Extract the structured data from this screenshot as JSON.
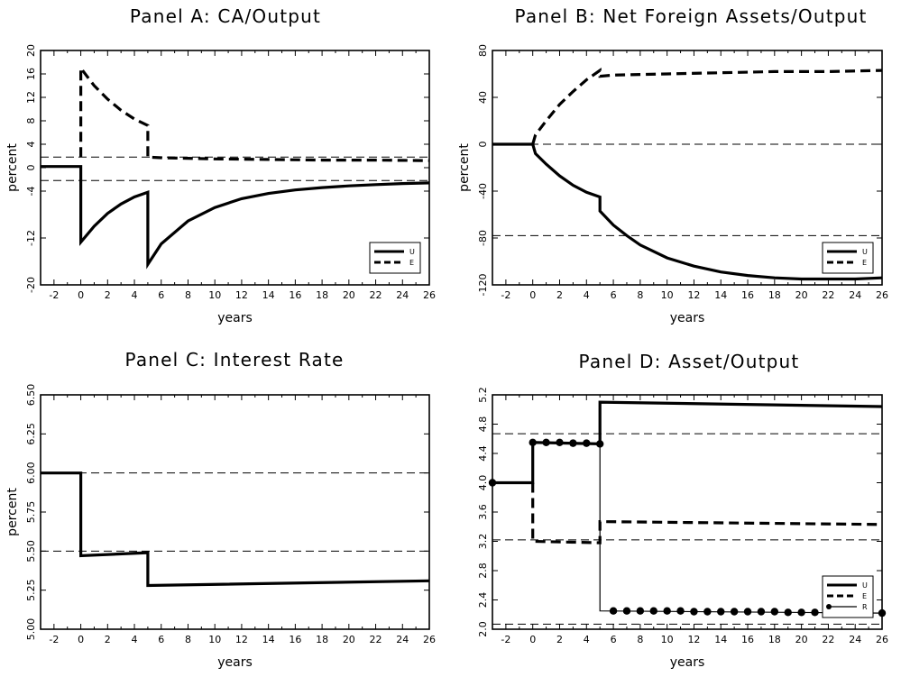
{
  "chart_data": [
    {
      "type": "line",
      "title": "Panel A: CA/Output",
      "xlabel": "years",
      "ylabel": "percent",
      "xlim": [
        -3,
        26
      ],
      "ylim": [
        -20,
        20
      ],
      "xticks": [
        -2,
        0,
        2,
        4,
        6,
        8,
        10,
        12,
        14,
        16,
        18,
        20,
        22,
        24,
        26
      ],
      "yticks": [
        -20,
        -12,
        -4,
        0,
        4,
        8,
        12,
        16,
        20
      ],
      "ytick_labels": [
        "-20",
        "-12",
        "-4",
        "0",
        "4",
        "8",
        "12",
        "16",
        "20"
      ],
      "hlines": [
        1.8,
        -2.2
      ],
      "legend": {
        "placement": "bottom-right",
        "entries": [
          "U",
          "E"
        ]
      },
      "series": [
        {
          "name": "U",
          "style": "solid",
          "x": [
            -3,
            0,
            0,
            1,
            2,
            3,
            4,
            5,
            5,
            6,
            8,
            10,
            12,
            14,
            16,
            18,
            20,
            22,
            24,
            26
          ],
          "y": [
            0.2,
            0.2,
            -12.7,
            -10.0,
            -7.8,
            -6.2,
            -5.0,
            -4.2,
            -16.5,
            -13.0,
            -9.1,
            -6.8,
            -5.3,
            -4.4,
            -3.8,
            -3.4,
            -3.1,
            -2.9,
            -2.7,
            -2.6
          ]
        },
        {
          "name": "E",
          "style": "dashed",
          "x": [
            0,
            0,
            0.5,
            1,
            2,
            3,
            4,
            5,
            5,
            6,
            10,
            14,
            18,
            22,
            26
          ],
          "y": [
            1.8,
            17.0,
            15.5,
            14.0,
            11.7,
            9.8,
            8.3,
            7.2,
            1.8,
            1.7,
            1.5,
            1.4,
            1.3,
            1.3,
            1.2
          ]
        }
      ]
    },
    {
      "type": "line",
      "title": "Panel B: Net Foreign Assets/Output",
      "xlabel": "years",
      "ylabel": "percent",
      "xlim": [
        -3,
        26
      ],
      "ylim": [
        -120,
        80
      ],
      "xticks": [
        -2,
        0,
        2,
        4,
        6,
        8,
        10,
        12,
        14,
        16,
        18,
        20,
        22,
        24,
        26
      ],
      "yticks": [
        -120,
        -80,
        -40,
        0,
        40,
        80
      ],
      "ytick_labels": [
        "-120",
        "-80",
        "-40",
        "0",
        "40",
        "80"
      ],
      "hlines": [
        0,
        -78
      ],
      "legend": {
        "placement": "bottom-right",
        "entries": [
          "U",
          "E"
        ]
      },
      "series": [
        {
          "name": "U",
          "style": "solid",
          "x": [
            -3,
            0,
            0.2,
            1,
            2,
            3,
            4,
            5,
            5,
            6,
            7,
            8,
            10,
            12,
            14,
            16,
            18,
            20,
            22,
            24,
            26
          ],
          "y": [
            0,
            0,
            -8,
            -17,
            -27,
            -35,
            -41,
            -45,
            -57,
            -69,
            -78,
            -86,
            -97,
            -104,
            -109,
            -112,
            -114,
            -115,
            -115,
            -115,
            -114
          ]
        },
        {
          "name": "E",
          "style": "dashed",
          "x": [
            0,
            0.2,
            1,
            2,
            3,
            4,
            5,
            5,
            6,
            10,
            14,
            18,
            22,
            26
          ],
          "y": [
            0,
            8,
            20,
            34,
            45,
            55,
            63,
            58,
            59,
            60,
            61,
            62,
            62,
            63
          ]
        }
      ]
    },
    {
      "type": "line",
      "title": "Panel C: Interest Rate",
      "xlabel": "years",
      "ylabel": "percent",
      "xlim": [
        -3,
        26
      ],
      "ylim": [
        5.0,
        6.5
      ],
      "xticks": [
        -2,
        0,
        2,
        4,
        6,
        8,
        10,
        12,
        14,
        16,
        18,
        20,
        22,
        24,
        26
      ],
      "yticks": [
        5.0,
        5.25,
        5.5,
        5.75,
        6.0,
        6.25,
        6.5
      ],
      "ytick_labels": [
        "5.00",
        "5.25",
        "5.50",
        "5.75",
        "6.00",
        "6.25",
        "6.50"
      ],
      "hlines": [
        6.0,
        5.5
      ],
      "legend": null,
      "series": [
        {
          "style": "solid",
          "x": [
            -3,
            0,
            0,
            5,
            5,
            26
          ],
          "y": [
            6.0,
            6.0,
            5.47,
            5.49,
            5.28,
            5.31
          ]
        }
      ]
    },
    {
      "type": "line",
      "title": "Panel D: Asset/Output",
      "xlabel": "years",
      "ylabel": "",
      "xlim": [
        -3,
        26
      ],
      "ylim": [
        2.0,
        5.2
      ],
      "xticks": [
        -2,
        0,
        2,
        4,
        6,
        8,
        10,
        12,
        14,
        16,
        18,
        20,
        22,
        24,
        26
      ],
      "yticks": [
        2.0,
        2.4,
        2.8,
        3.2,
        3.6,
        4.0,
        4.4,
        4.8,
        5.2
      ],
      "ytick_labels": [
        "2.0",
        "2.4",
        "2.8",
        "3.2",
        "3.6",
        "4.0",
        "4.4",
        "4.8",
        "5.2"
      ],
      "hlines": [
        4.67,
        3.22,
        2.07
      ],
      "legend": {
        "placement": "bottom-right",
        "entries": [
          "U",
          "E",
          "R"
        ]
      },
      "series": [
        {
          "name": "U",
          "style": "solid",
          "x": [
            -3,
            0,
            0,
            5,
            5,
            26
          ],
          "y": [
            4.0,
            4.0,
            4.55,
            4.53,
            5.1,
            5.04
          ]
        },
        {
          "name": "E",
          "style": "dashed",
          "x": [
            0,
            0,
            5,
            5,
            26
          ],
          "y": [
            4.0,
            3.2,
            3.18,
            3.47,
            3.43
          ]
        },
        {
          "name": "R",
          "style": "dotted-line",
          "x": [
            -3,
            0,
            0,
            5,
            5,
            26
          ],
          "y": [
            4.0,
            4.0,
            4.55,
            4.53,
            2.25,
            2.22
          ],
          "markers_x": [
            -3,
            0,
            1,
            2,
            3,
            4,
            5,
            6,
            7,
            8,
            9,
            10,
            11,
            12,
            13,
            14,
            15,
            16,
            17,
            18,
            19,
            20,
            21,
            22,
            23,
            24,
            25,
            26
          ],
          "markers_y": [
            4.0,
            4.55,
            4.55,
            4.55,
            4.54,
            4.54,
            4.53,
            2.25,
            2.25,
            2.25,
            2.25,
            2.25,
            2.25,
            2.24,
            2.24,
            2.24,
            2.24,
            2.24,
            2.24,
            2.24,
            2.23,
            2.23,
            2.23,
            2.23,
            2.23,
            2.22,
            2.22,
            2.22
          ]
        }
      ]
    }
  ]
}
